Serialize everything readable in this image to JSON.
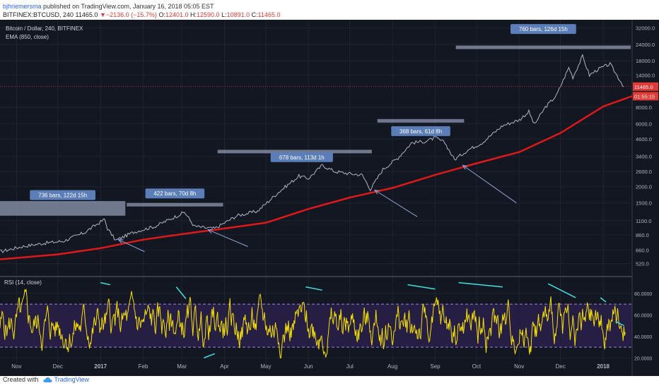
{
  "header": {
    "author": "bjhriemersma",
    "published_text": "published on TradingView.com, January 16, 2018 05:05 EST",
    "symbol": "BITFINEX:BTCUSD, 240",
    "last": "11465.0",
    "change": "−2136.0 (−15.7%)",
    "o_label": "O:",
    "o_value": "12401.0",
    "h_label": "H:",
    "h_value": "12590.0",
    "l_label": "L:",
    "l_value": "10891.0",
    "c_label": "C:",
    "c_value": "11465.0"
  },
  "footer": {
    "created_with": "Created with",
    "brand": "TradingView"
  },
  "chart_data": {
    "type": "line",
    "title": "Bitcoin / Dollar, 240, BITFINEX",
    "indicator_label": "EMA (850, close)",
    "price_scale": "log",
    "y_ticks": [
      "32000.0",
      "24000.0",
      "18000.0",
      "14000.0",
      "11465.0",
      "8000.0",
      "6000.0",
      "4600.0",
      "3400.0",
      "2600.0",
      "2000.0",
      "1500.0",
      "1100.0",
      "860.0",
      "660.0",
      "520.0"
    ],
    "y_tick_values": [
      32000,
      24000,
      18000,
      14000,
      11465,
      8000,
      6000,
      4600,
      3400,
      2600,
      2000,
      1500,
      1100,
      860,
      660,
      520
    ],
    "ylim": [
      430,
      36000
    ],
    "x_ticks": [
      "Nov",
      "Dec",
      "2017",
      "Feb",
      "Mar",
      "Apr",
      "May",
      "Jun",
      "Jul",
      "Aug",
      "Sep",
      "Oct",
      "Nov",
      "Dec",
      "2018"
    ],
    "x_tick_dates": [
      "2016-11-01",
      "2016-12-01",
      "2017-01-01",
      "2017-02-01",
      "2017-03-01",
      "2017-04-01",
      "2017-05-01",
      "2017-06-01",
      "2017-07-01",
      "2017-08-01",
      "2017-09-01",
      "2017-10-01",
      "2017-11-01",
      "2017-12-01",
      "2018-01-01"
    ],
    "xlim": [
      "2016-10-20",
      "2018-01-22"
    ],
    "price_label": "11465.0",
    "countdown_label": "01:55:15",
    "series": [
      {
        "name": "BTCUSD",
        "color": "#b2b5be",
        "x": [
          "2016-10-20",
          "2016-11-05",
          "2016-11-20",
          "2016-12-05",
          "2016-12-20",
          "2017-01-04",
          "2017-01-06",
          "2017-01-12",
          "2017-01-25",
          "2017-02-10",
          "2017-02-25",
          "2017-03-03",
          "2017-03-10",
          "2017-03-18",
          "2017-03-25",
          "2017-04-10",
          "2017-04-25",
          "2017-05-10",
          "2017-05-25",
          "2017-06-01",
          "2017-06-11",
          "2017-06-20",
          "2017-07-01",
          "2017-07-10",
          "2017-07-16",
          "2017-07-25",
          "2017-08-05",
          "2017-08-15",
          "2017-08-25",
          "2017-09-01",
          "2017-09-08",
          "2017-09-15",
          "2017-09-25",
          "2017-10-05",
          "2017-10-20",
          "2017-11-01",
          "2017-11-08",
          "2017-11-12",
          "2017-11-20",
          "2017-11-28",
          "2017-12-07",
          "2017-12-10",
          "2017-12-17",
          "2017-12-22",
          "2017-12-28",
          "2018-01-06",
          "2018-01-10",
          "2018-01-16"
        ],
        "y": [
          640,
          700,
          740,
          770,
          890,
          1130,
          960,
          780,
          900,
          1000,
          1190,
          1280,
          1000,
          970,
          960,
          1200,
          1300,
          1800,
          2400,
          2300,
          2900,
          2600,
          2500,
          2450,
          1900,
          2700,
          3300,
          4300,
          4400,
          4700,
          4300,
          3200,
          3800,
          4300,
          5800,
          6400,
          7400,
          5900,
          8000,
          9800,
          16000,
          13500,
          19500,
          14000,
          15500,
          17000,
          14500,
          11465
        ]
      },
      {
        "name": "EMA (850, close)",
        "color": "#e01818",
        "x": [
          "2016-10-20",
          "2016-12-01",
          "2017-01-01",
          "2017-02-01",
          "2017-03-01",
          "2017-04-01",
          "2017-05-01",
          "2017-06-01",
          "2017-07-01",
          "2017-08-01",
          "2017-09-01",
          "2017-10-01",
          "2017-11-01",
          "2017-12-01",
          "2018-01-01",
          "2018-01-22"
        ],
        "y": [
          560,
          610,
          680,
          790,
          870,
          960,
          1060,
          1350,
          1650,
          1950,
          2450,
          3000,
          3650,
          5100,
          8100,
          9700
        ]
      }
    ],
    "annotations": [
      {
        "text": "736 bars, 122d 15h",
        "start": "2016-10-20",
        "end": "2017-01-19",
        "top": 1550,
        "bottom": 1200,
        "label_y": 1700
      },
      {
        "text": "422 bars, 70d 8h",
        "start": "2017-01-20",
        "end": "2017-03-31",
        "top": 1500,
        "bottom": 1500,
        "label_y": 1750
      },
      {
        "text": "678 bars, 113d 1h",
        "start": "2017-03-27",
        "end": "2017-07-17",
        "top": 3800,
        "bottom": 3800,
        "label_y": 3300
      },
      {
        "text": "368 bars, 61d 8h",
        "start": "2017-07-21",
        "end": "2017-09-22",
        "top": 6500,
        "bottom": 6500,
        "label_y": 5200
      },
      {
        "text": "760 bars, 126d 15h",
        "start": "2017-09-16",
        "end": "2018-01-21",
        "top": 23500,
        "bottom": 23500,
        "label_y": 31000
      }
    ],
    "arrows": [
      {
        "from": [
          "2017-02-02",
          640
        ],
        "to": [
          "2017-01-14",
          790
        ]
      },
      {
        "from": [
          "2017-04-18",
          700
        ],
        "to": [
          "2017-03-20",
          940
        ]
      },
      {
        "from": [
          "2017-08-19",
          1180
        ],
        "to": [
          "2017-07-19",
          1880
        ]
      },
      {
        "from": [
          "2017-10-30",
          1500
        ],
        "to": [
          "2017-09-21",
          2900
        ]
      }
    ]
  },
  "rsi": {
    "label": "RSI (14, close)",
    "y_ticks": [
      "80.0000",
      "60.0000",
      "40.0000",
      "20.0000"
    ],
    "y_tick_values": [
      80,
      60,
      40,
      20
    ],
    "ylim": [
      15,
      95
    ],
    "upper_band": 70,
    "lower_band": 30,
    "line_color": "#f5e100",
    "divergence_lines": [
      {
        "from": [
          "2017-01-01",
          90
        ],
        "to": [
          "2017-01-08",
          88
        ]
      },
      {
        "from": [
          "2017-02-25",
          86
        ],
        "to": [
          "2017-03-04",
          75
        ]
      },
      {
        "from": [
          "2017-03-17",
          20
        ],
        "to": [
          "2017-03-25",
          24
        ]
      },
      {
        "from": [
          "2017-05-30",
          86
        ],
        "to": [
          "2017-06-11",
          83
        ]
      },
      {
        "from": [
          "2017-08-12",
          88
        ],
        "to": [
          "2017-09-01",
          84
        ]
      },
      {
        "from": [
          "2017-09-18",
          90
        ],
        "to": [
          "2017-10-20",
          86
        ]
      },
      {
        "from": [
          "2017-11-22",
          89
        ],
        "to": [
          "2017-12-12",
          76
        ]
      },
      {
        "from": [
          "2017-12-30",
          76
        ],
        "to": [
          "2018-01-03",
          72
        ]
      },
      {
        "from": [
          "2018-01-10",
          54
        ],
        "to": [
          "2018-01-16",
          50
        ]
      }
    ]
  }
}
